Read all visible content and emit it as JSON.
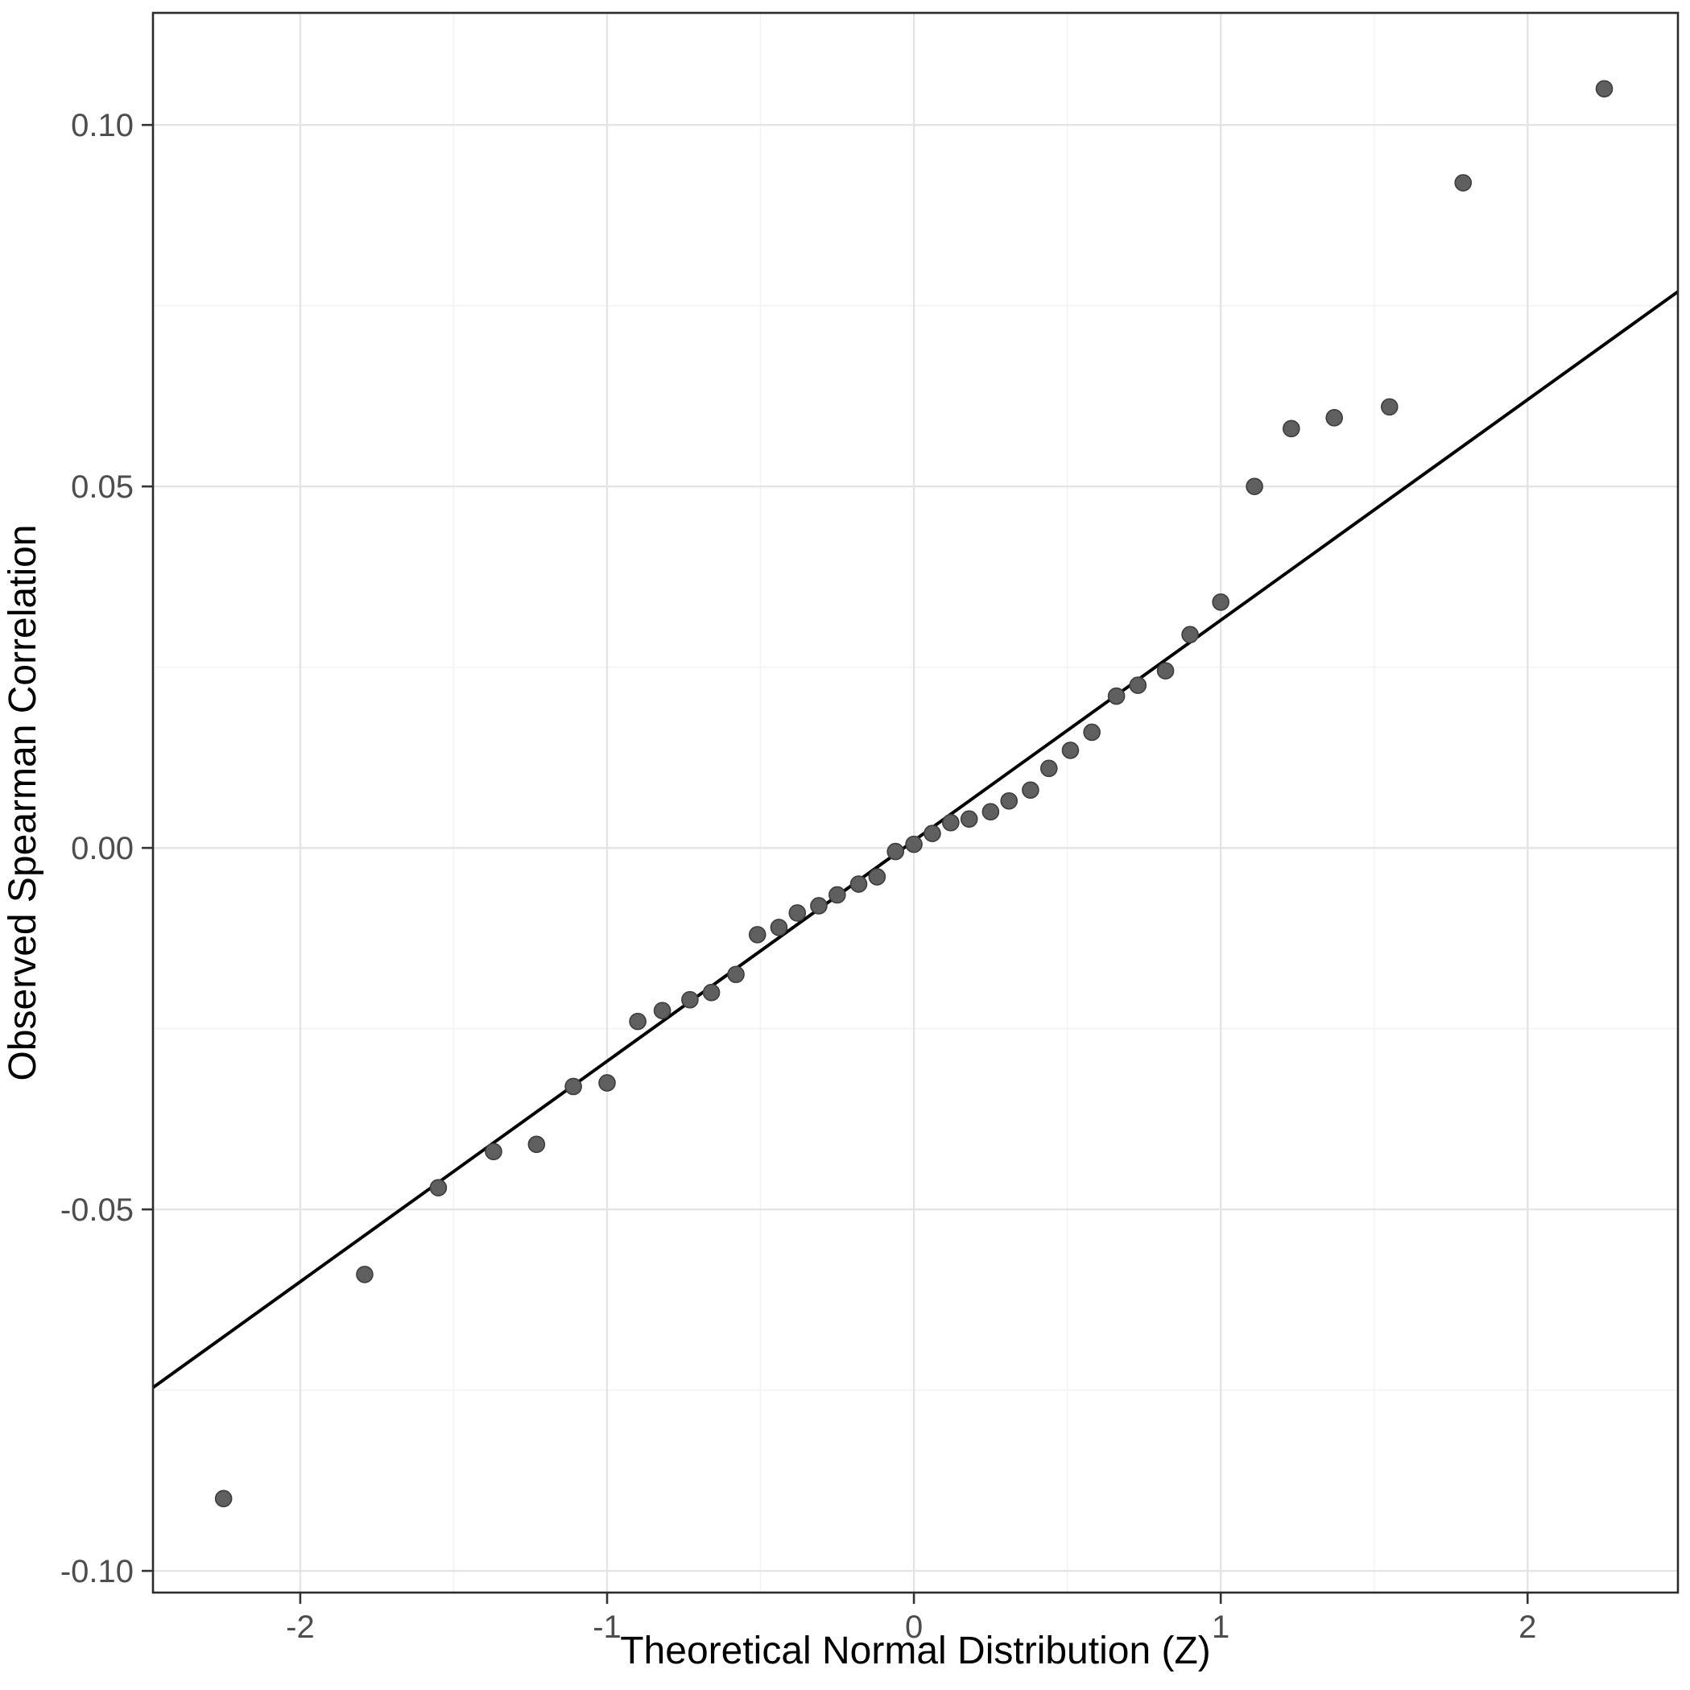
{
  "chart_data": {
    "type": "scatter",
    "title": "",
    "xlabel": "Theoretical Normal Distribution (Z)",
    "ylabel": "Observed Spearman Correlation",
    "xlim": [
      -2.48,
      2.49
    ],
    "ylim": [
      -0.103,
      0.1155
    ],
    "grid": true,
    "legend": "none",
    "x_ticks": {
      "values": [
        -2,
        -1,
        0,
        1,
        2
      ],
      "labels": [
        "-2",
        "-1",
        "0",
        "1",
        "2"
      ]
    },
    "y_ticks": {
      "values": [
        -0.1,
        -0.05,
        0.0,
        0.05,
        0.1
      ],
      "labels": [
        "-0.10",
        "-0.05",
        "0.00",
        "0.05",
        "0.10"
      ]
    },
    "x_minor": [
      -1.5,
      -0.5,
      0.5,
      1.5
    ],
    "y_minor": [
      -0.075,
      -0.025,
      0.025,
      0.075
    ],
    "reference_line": {
      "slope": 0.0305,
      "intercept": 0.001
    },
    "points": [
      [
        -2.25,
        -0.09
      ],
      [
        -1.79,
        -0.059
      ],
      [
        -1.55,
        -0.047
      ],
      [
        -1.37,
        -0.042
      ],
      [
        -1.23,
        -0.041
      ],
      [
        -1.11,
        -0.033
      ],
      [
        -1.0,
        -0.0325
      ],
      [
        -0.9,
        -0.024
      ],
      [
        -0.82,
        -0.0225
      ],
      [
        -0.73,
        -0.021
      ],
      [
        -0.66,
        -0.02
      ],
      [
        -0.58,
        -0.0175
      ],
      [
        -0.51,
        -0.012
      ],
      [
        -0.44,
        -0.011
      ],
      [
        -0.38,
        -0.009
      ],
      [
        -0.31,
        -0.008
      ],
      [
        -0.25,
        -0.0065
      ],
      [
        -0.18,
        -0.005
      ],
      [
        -0.12,
        -0.004
      ],
      [
        -0.06,
        -0.0005
      ],
      [
        0.0,
        0.0005
      ],
      [
        0.06,
        0.002
      ],
      [
        0.12,
        0.0035
      ],
      [
        0.18,
        0.004
      ],
      [
        0.25,
        0.005
      ],
      [
        0.31,
        0.0065
      ],
      [
        0.38,
        0.008
      ],
      [
        0.44,
        0.011
      ],
      [
        0.51,
        0.0135
      ],
      [
        0.58,
        0.016
      ],
      [
        0.66,
        0.021
      ],
      [
        0.73,
        0.0225
      ],
      [
        0.82,
        0.0245
      ],
      [
        0.9,
        0.0295
      ],
      [
        1.0,
        0.034
      ],
      [
        1.11,
        0.05
      ],
      [
        1.23,
        0.058
      ],
      [
        1.37,
        0.0595
      ],
      [
        1.55,
        0.061
      ],
      [
        1.79,
        0.092
      ],
      [
        2.25,
        0.105
      ]
    ],
    "style": {
      "background": "#ffffff",
      "panel_background": "#ffffff",
      "panel_border": "#2b2b2b",
      "grid_major": "#e4e4e4",
      "grid_minor": "#f3f3f3",
      "point_fill": "#5f5f5f",
      "point_stroke": "#3d3d3d",
      "reference_line_color": "#000000",
      "tick_color": "#333333"
    }
  }
}
